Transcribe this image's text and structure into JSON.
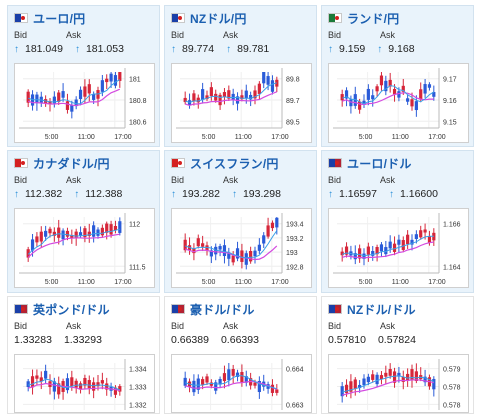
{
  "labels": {
    "bid": "Bid",
    "ask": "Ask"
  },
  "arrow_up": "↑",
  "cards": [
    {
      "title": "ユーロ/円",
      "bid": "181.049",
      "ask": "181.053",
      "arrows": true,
      "yticks": [
        "181",
        "180.8",
        "180.6"
      ],
      "xticks": [
        "5:00",
        "11:00",
        "17:00"
      ],
      "flag": "eu-jp-icon"
    },
    {
      "title": "NZドル/円",
      "bid": "89.774",
      "ask": "89.781",
      "arrows": true,
      "yticks": [
        "89.8",
        "89.7",
        "89.5"
      ],
      "xticks": [
        "5:00",
        "11:00",
        "17:00"
      ],
      "flag": "nz-jp-icon"
    },
    {
      "title": "ランド/円",
      "bid": "9.159",
      "ask": "9.168",
      "arrows": true,
      "yticks": [
        "9.17",
        "9.16",
        "9.15"
      ],
      "xticks": [
        "5:00",
        "11:00",
        "17:00"
      ],
      "flag": "za-jp-icon"
    },
    {
      "title": "カナダドル/円",
      "bid": "112.382",
      "ask": "112.388",
      "arrows": true,
      "yticks": [
        "112",
        "111.5"
      ],
      "xticks": [
        "5:00",
        "11:00",
        "17:00"
      ],
      "flag": "ca-jp-icon"
    },
    {
      "title": "スイスフラン/円",
      "bid": "193.282",
      "ask": "193.298",
      "arrows": true,
      "yticks": [
        "193.4",
        "193.2",
        "193",
        "192.8"
      ],
      "xticks": [
        "5:00",
        "11:00",
        "17:00"
      ],
      "flag": "ch-jp-icon"
    },
    {
      "title": "ユーロ/ドル",
      "bid": "1.16597",
      "ask": "1.16600",
      "arrows": true,
      "yticks": [
        "1.166",
        "1.164"
      ],
      "xticks": [
        "5:00",
        "11:00",
        "17:00"
      ],
      "flag": "eu-us-icon"
    },
    {
      "title": "英ポンド/ドル",
      "bid": "1.33283",
      "ask": "1.33293",
      "arrows": false,
      "yticks": [
        "1.334",
        "1.333",
        "1.332"
      ],
      "xticks": [],
      "flag": "gb-us-icon"
    },
    {
      "title": "豪ドル/ドル",
      "bid": "0.66389",
      "ask": "0.66393",
      "arrows": false,
      "yticks": [
        "0.664",
        "0.663"
      ],
      "xticks": [],
      "flag": "au-us-icon"
    },
    {
      "title": "NZドル/ドル",
      "bid": "0.57810",
      "ask": "0.57824",
      "arrows": false,
      "yticks": [
        "0.579",
        "0.578",
        "0.578"
      ],
      "xticks": [],
      "flag": "nz-us-icon"
    }
  ],
  "colors": {
    "title": "#1b5fb0",
    "up_candle": "#d6263a",
    "down_candle": "#2a5bd8",
    "ma_line": "#d44be0",
    "ma2_line": "#3aa0e8",
    "card_bg": "#e9f3fb"
  }
}
